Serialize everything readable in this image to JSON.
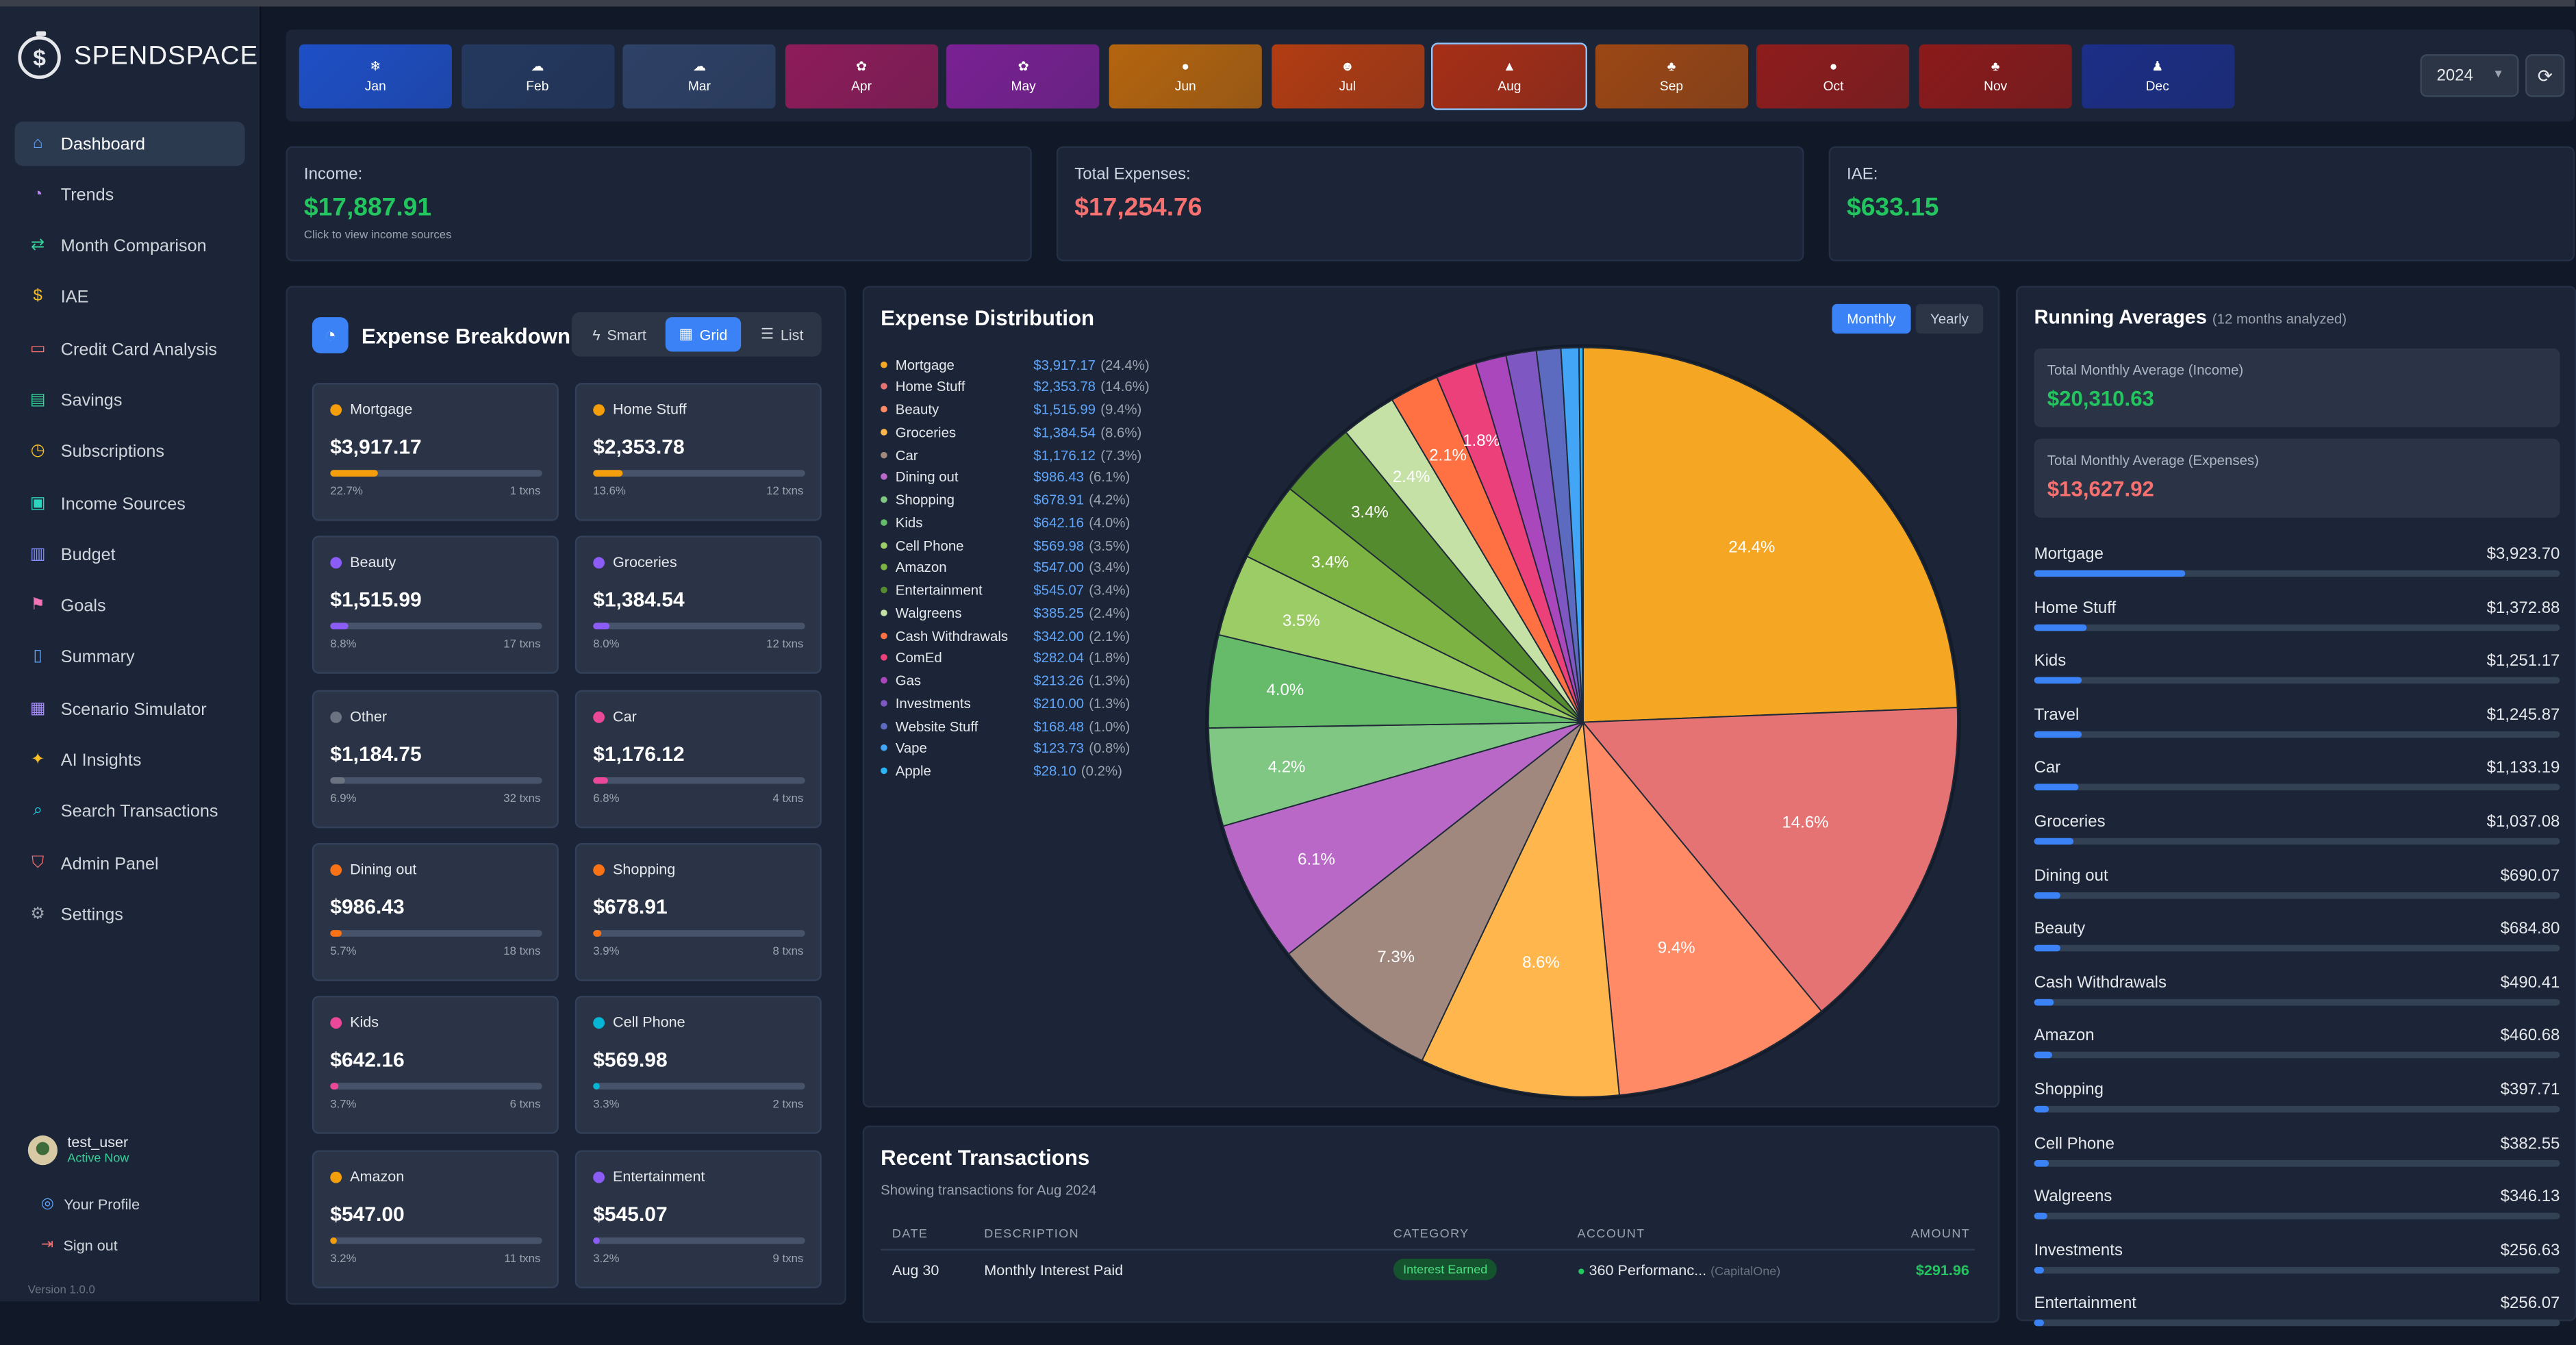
{
  "app": {
    "name": "SPENDSPACE",
    "version": "Version 1.0.0"
  },
  "sidebar": {
    "items": [
      {
        "label": "Dashboard",
        "icon": "home-icon",
        "glyph": "⌂",
        "color": "#60a5fa",
        "active": true
      },
      {
        "label": "Trends",
        "icon": "trends-icon",
        "glyph": "◔",
        "color": "#c084fc"
      },
      {
        "label": "Month Comparison",
        "icon": "compare-arrows-icon",
        "glyph": "⇄",
        "color": "#34d399"
      },
      {
        "label": "IAE",
        "icon": "dollar-icon",
        "glyph": "$",
        "color": "#fbbf24"
      },
      {
        "label": "Credit Card Analysis",
        "icon": "credit-card-icon",
        "glyph": "▭",
        "color": "#f87171"
      },
      {
        "label": "Savings",
        "icon": "savings-icon",
        "glyph": "▤",
        "color": "#34d399"
      },
      {
        "label": "Subscriptions",
        "icon": "clock-icon",
        "glyph": "◷",
        "color": "#fbbf24"
      },
      {
        "label": "Income Sources",
        "icon": "cash-icon",
        "glyph": "▣",
        "color": "#2dd4bf"
      },
      {
        "label": "Budget",
        "icon": "bar-chart-icon",
        "glyph": "▥",
        "color": "#818cf8"
      },
      {
        "label": "Goals",
        "icon": "flag-icon",
        "glyph": "⚑",
        "color": "#f472b6"
      },
      {
        "label": "Summary",
        "icon": "document-icon",
        "glyph": "▯",
        "color": "#60a5fa"
      },
      {
        "label": "Scenario Simulator",
        "icon": "calculator-icon",
        "glyph": "▦",
        "color": "#a78bfa"
      },
      {
        "label": "AI Insights",
        "icon": "sparkles-icon",
        "glyph": "✦",
        "color": "#fbbf24"
      },
      {
        "label": "Search Transactions",
        "icon": "search-icon",
        "glyph": "⌕",
        "color": "#22d3ee"
      },
      {
        "label": "Admin Panel",
        "icon": "shield-icon",
        "glyph": "⛉",
        "color": "#f87171"
      },
      {
        "label": "Settings",
        "icon": "gear-icon",
        "glyph": "⚙",
        "color": "#9ca3af"
      }
    ]
  },
  "user": {
    "name": "test_user",
    "status": "Active Now",
    "profile": "Your Profile",
    "signout": "Sign out"
  },
  "months": [
    {
      "label": "Jan",
      "icon": "❄",
      "bg": "#1e4fc6"
    },
    {
      "label": "Feb",
      "icon": "☁",
      "bg": "#24385f"
    },
    {
      "label": "Mar",
      "icon": "☁",
      "bg": "#2e4166"
    },
    {
      "label": "Apr",
      "icon": "✿",
      "bg": "#8e1c5a"
    },
    {
      "label": "May",
      "icon": "✿",
      "bg": "#7a2194"
    },
    {
      "label": "Jun",
      "icon": "●",
      "bg": "#b5650e"
    },
    {
      "label": "Jul",
      "icon": "☻",
      "bg": "#b23c12"
    },
    {
      "label": "Aug",
      "icon": "▲",
      "bg": "#a62e16",
      "selected": true
    },
    {
      "label": "Sep",
      "icon": "♣",
      "bg": "#9c4714"
    },
    {
      "label": "Oct",
      "icon": "●",
      "bg": "#8e1c1c"
    },
    {
      "label": "Nov",
      "icon": "♣",
      "bg": "#8b1a1a"
    },
    {
      "label": "Dec",
      "icon": "♟",
      "bg": "#1c2e86"
    }
  ],
  "year": "2024",
  "summary": {
    "income": {
      "label": "Income:",
      "value": "$17,887.91",
      "sub": "Click to view income sources"
    },
    "expenses": {
      "label": "Total Expenses:",
      "value": "$17,254.76"
    },
    "iae": {
      "label": "IAE:",
      "value": "$633.15"
    }
  },
  "breakdown": {
    "title": "Expense Breakdown",
    "views": [
      "Smart",
      "Grid",
      "List"
    ],
    "active_view": "Grid",
    "tiles": [
      {
        "name": "Mortgage",
        "amount": "$3,917.17",
        "pct": "22.7%",
        "txns": "1 txns",
        "fill": 0.227,
        "color": "#f59e0b"
      },
      {
        "name": "Home Stuff",
        "amount": "$2,353.78",
        "pct": "13.6%",
        "txns": "12 txns",
        "fill": 0.136,
        "color": "#f59e0b"
      },
      {
        "name": "Beauty",
        "amount": "$1,515.99",
        "pct": "8.8%",
        "txns": "17 txns",
        "fill": 0.088,
        "color": "#8b5cf6"
      },
      {
        "name": "Groceries",
        "amount": "$1,384.54",
        "pct": "8.0%",
        "txns": "12 txns",
        "fill": 0.08,
        "color": "#8b5cf6"
      },
      {
        "name": "Other",
        "amount": "$1,184.75",
        "pct": "6.9%",
        "txns": "32 txns",
        "fill": 0.069,
        "color": "#6b7280"
      },
      {
        "name": "Car",
        "amount": "$1,176.12",
        "pct": "6.8%",
        "txns": "4 txns",
        "fill": 0.068,
        "color": "#ec4899"
      },
      {
        "name": "Dining out",
        "amount": "$986.43",
        "pct": "5.7%",
        "txns": "18 txns",
        "fill": 0.057,
        "color": "#f97316"
      },
      {
        "name": "Shopping",
        "amount": "$678.91",
        "pct": "3.9%",
        "txns": "8 txns",
        "fill": 0.039,
        "color": "#f97316"
      },
      {
        "name": "Kids",
        "amount": "$642.16",
        "pct": "3.7%",
        "txns": "6 txns",
        "fill": 0.037,
        "color": "#ec4899"
      },
      {
        "name": "Cell Phone",
        "amount": "$569.98",
        "pct": "3.3%",
        "txns": "2 txns",
        "fill": 0.033,
        "color": "#06b6d4"
      },
      {
        "name": "Amazon",
        "amount": "$547.00",
        "pct": "3.2%",
        "txns": "11 txns",
        "fill": 0.032,
        "color": "#f59e0b"
      },
      {
        "name": "Entertainment",
        "amount": "$545.07",
        "pct": "3.2%",
        "txns": "9 txns",
        "fill": 0.032,
        "color": "#8b5cf6"
      }
    ]
  },
  "distribution": {
    "title": "Expense Distribution",
    "toggle": [
      "Monthly",
      "Yearly"
    ],
    "active": "Monthly",
    "legend": [
      {
        "name": "Mortgage",
        "amount": "$3,917.17",
        "pct": "(24.4%)",
        "color": "#f5a623"
      },
      {
        "name": "Home Stuff",
        "amount": "$2,353.78",
        "pct": "(14.6%)",
        "color": "#e57373"
      },
      {
        "name": "Beauty",
        "amount": "$1,515.99",
        "pct": "(9.4%)",
        "color": "#ff8a65"
      },
      {
        "name": "Groceries",
        "amount": "$1,384.54",
        "pct": "(8.6%)",
        "color": "#ffb74d"
      },
      {
        "name": "Car",
        "amount": "$1,176.12",
        "pct": "(7.3%)",
        "color": "#a1887f"
      },
      {
        "name": "Dining out",
        "amount": "$986.43",
        "pct": "(6.1%)",
        "color": "#ba68c8"
      },
      {
        "name": "Shopping",
        "amount": "$678.91",
        "pct": "(4.2%)",
        "color": "#81c784"
      },
      {
        "name": "Kids",
        "amount": "$642.16",
        "pct": "(4.0%)",
        "color": "#66bb6a"
      },
      {
        "name": "Cell Phone",
        "amount": "$569.98",
        "pct": "(3.5%)",
        "color": "#9ccc65"
      },
      {
        "name": "Amazon",
        "amount": "$547.00",
        "pct": "(3.4%)",
        "color": "#7cb342"
      },
      {
        "name": "Entertainment",
        "amount": "$545.07",
        "pct": "(3.4%)",
        "color": "#558b2f"
      },
      {
        "name": "Walgreens",
        "amount": "$385.25",
        "pct": "(2.4%)",
        "color": "#c5e1a5"
      },
      {
        "name": "Cash Withdrawals",
        "amount": "$342.00",
        "pct": "(2.1%)",
        "color": "#ff7043"
      },
      {
        "name": "ComEd",
        "amount": "$282.04",
        "pct": "(1.8%)",
        "color": "#ec407a"
      },
      {
        "name": "Gas",
        "amount": "$213.26",
        "pct": "(1.3%)",
        "color": "#ab47bc"
      },
      {
        "name": "Investments",
        "amount": "$210.00",
        "pct": "(1.3%)",
        "color": "#7e57c2"
      },
      {
        "name": "Website Stuff",
        "amount": "$168.48",
        "pct": "(1.0%)",
        "color": "#5c6bc0"
      },
      {
        "name": "Vape",
        "amount": "$123.73",
        "pct": "(0.8%)",
        "color": "#42a5f5"
      },
      {
        "name": "Apple",
        "amount": "$28.10",
        "pct": "(0.2%)",
        "color": "#29b6f6"
      }
    ]
  },
  "chart_data": {
    "type": "pie",
    "title": "Expense Distribution",
    "labels": [
      "Mortgage",
      "Home Stuff",
      "Beauty",
      "Groceries",
      "Car",
      "Dining out",
      "Shopping",
      "Kids",
      "Cell Phone",
      "Amazon",
      "Entertainment",
      "Walgreens",
      "Cash Withdrawals",
      "ComEd",
      "Gas",
      "Investments",
      "Website Stuff",
      "Vape",
      "Apple"
    ],
    "values": [
      3917.17,
      2353.78,
      1515.99,
      1384.54,
      1176.12,
      986.43,
      678.91,
      642.16,
      569.98,
      547.0,
      545.07,
      385.25,
      342.0,
      282.04,
      213.26,
      210.0,
      168.48,
      123.73,
      28.1
    ],
    "slice_labels": [
      "24.4%",
      "14.6%",
      "9.4%",
      "8.6%",
      "7.3%",
      "6.1%",
      "4.2%",
      "4.0%",
      "3.5%",
      "3.4%",
      "3.4%",
      "2.4%",
      "2.1%",
      "1.8%",
      "",
      "",
      "",
      "",
      ""
    ],
    "colors": [
      "#f5a623",
      "#e57373",
      "#ff8a65",
      "#ffb74d",
      "#a1887f",
      "#ba68c8",
      "#81c784",
      "#66bb6a",
      "#9ccc65",
      "#7cb342",
      "#558b2f",
      "#c5e1a5",
      "#ff7043",
      "#ec407a",
      "#ab47bc",
      "#7e57c2",
      "#5c6bc0",
      "#42a5f5",
      "#29b6f6"
    ]
  },
  "transactions": {
    "title": "Recent Transactions",
    "subtitle": "Showing transactions for Aug 2024",
    "headers": [
      "DATE",
      "DESCRIPTION",
      "CATEGORY",
      "ACCOUNT",
      "AMOUNT"
    ],
    "rows": [
      {
        "date": "Aug 30",
        "description": "Monthly Interest Paid",
        "category": "Interest Earned",
        "account": "360 Performanc...",
        "bank": "(CapitalOne)",
        "amount": "$291.96"
      }
    ]
  },
  "averages": {
    "title": "Running Averages",
    "subtitle": "(12 months analyzed)",
    "income_label": "Total Monthly Average (Income)",
    "income_value": "$20,310.63",
    "expense_label": "Total Monthly Average (Expenses)",
    "expense_value": "$13,627.92",
    "items": [
      {
        "name": "Mortgage",
        "value": "$3,923.70",
        "fill": 0.288
      },
      {
        "name": "Home Stuff",
        "value": "$1,372.88",
        "fill": 0.1
      },
      {
        "name": "Kids",
        "value": "$1,251.17",
        "fill": 0.092
      },
      {
        "name": "Travel",
        "value": "$1,245.87",
        "fill": 0.091
      },
      {
        "name": "Car",
        "value": "$1,133.19",
        "fill": 0.083
      },
      {
        "name": "Groceries",
        "value": "$1,037.08",
        "fill": 0.076
      },
      {
        "name": "Dining out",
        "value": "$690.07",
        "fill": 0.051
      },
      {
        "name": "Beauty",
        "value": "$684.80",
        "fill": 0.05
      },
      {
        "name": "Cash Withdrawals",
        "value": "$490.41",
        "fill": 0.036
      },
      {
        "name": "Amazon",
        "value": "$460.68",
        "fill": 0.034
      },
      {
        "name": "Shopping",
        "value": "$397.71",
        "fill": 0.029
      },
      {
        "name": "Cell Phone",
        "value": "$382.55",
        "fill": 0.028
      },
      {
        "name": "Walgreens",
        "value": "$346.13",
        "fill": 0.025
      },
      {
        "name": "Investments",
        "value": "$256.63",
        "fill": 0.019
      },
      {
        "name": "Entertainment",
        "value": "$256.07",
        "fill": 0.019
      }
    ]
  }
}
